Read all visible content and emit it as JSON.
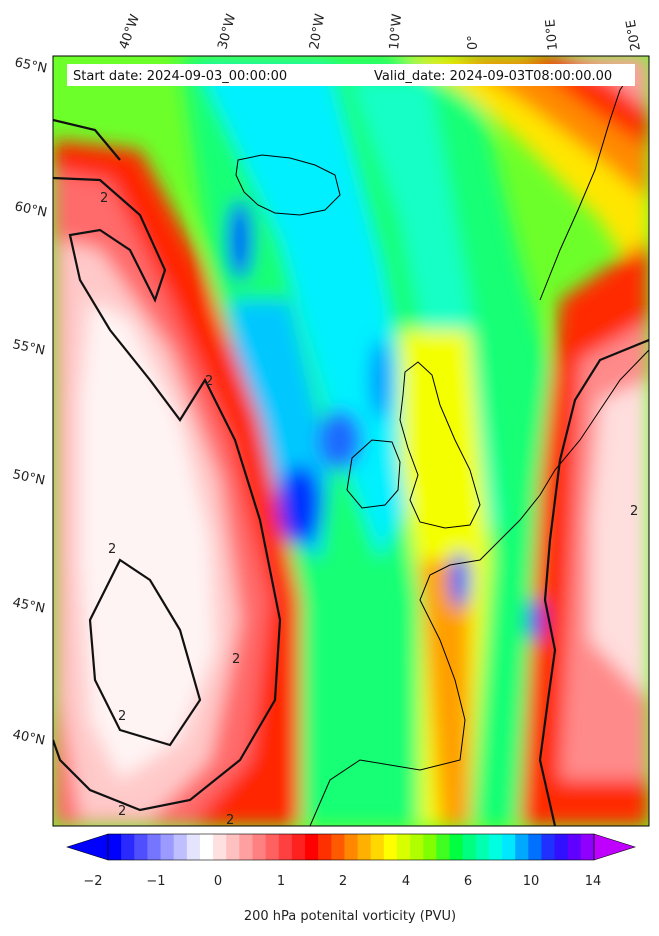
{
  "header": {
    "start_date": "Start date: 2024-09-03_00:00:00",
    "valid_date": "Valid_date: 2024-09-03T08:00:00.00"
  },
  "lon_labels": [
    "40°W",
    "30°W",
    "20°W",
    "10°W",
    "0°",
    "10°E",
    "20°E"
  ],
  "lat_labels": [
    "65°N",
    "60°N",
    "55°N",
    "50°N",
    "45°N",
    "40°N"
  ],
  "colorbar": {
    "label": "200 hPa potenital vorticity (PVU)",
    "tick_labels": [
      "−2",
      "−1",
      "0",
      "1",
      "2",
      "4",
      "6",
      "10",
      "14"
    ],
    "colors": [
      "#0000ff",
      "#2a2aff",
      "#4f4fff",
      "#7575ff",
      "#9a9aff",
      "#bfbfff",
      "#e4e4ff",
      "#ffffff",
      "#ffe0e0",
      "#ffc0c0",
      "#ffa0a0",
      "#ff8080",
      "#ff6060",
      "#ff4040",
      "#ff2020",
      "#ff0000",
      "#ff3000",
      "#ff5a00",
      "#ff8800",
      "#ffb000",
      "#ffd800",
      "#ffff00",
      "#d8ff00",
      "#b0ff00",
      "#80ff00",
      "#40ff20",
      "#00ff40",
      "#00ff80",
      "#00ffb0",
      "#00ffe0",
      "#00e8ff",
      "#00a8ff",
      "#0070ff",
      "#2030ff",
      "#3010ff",
      "#6000ff",
      "#9000ff"
    ],
    "under_color": "#0000ff",
    "over_color": "#c000ff"
  },
  "contour_labels": [
    "2",
    "2",
    "2",
    "2",
    "2",
    "2",
    "2",
    "2"
  ]
}
